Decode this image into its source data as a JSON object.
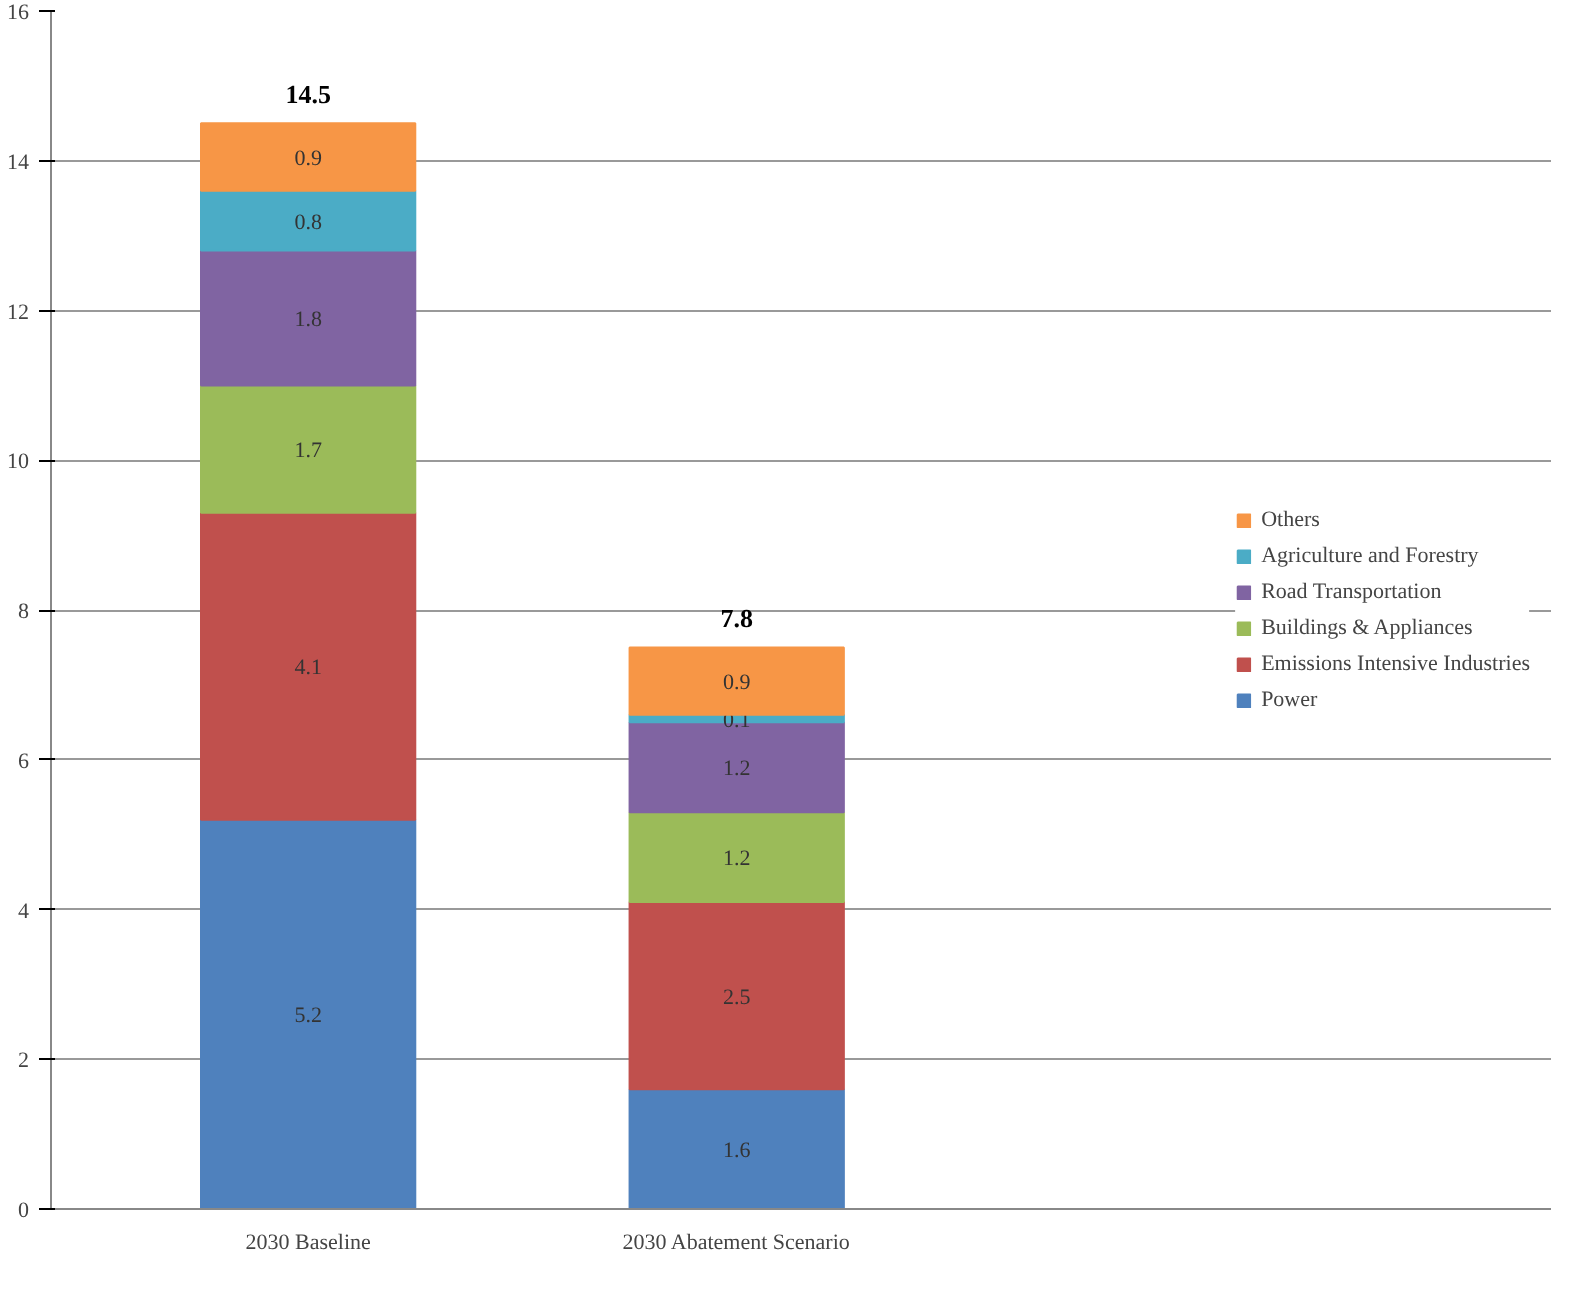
{
  "chart_data": {
    "type": "bar",
    "stacked": true,
    "categories": [
      "2030 Baseline",
      "2030 Abatement Scenario"
    ],
    "series": [
      {
        "name": "Power",
        "color": "#4f81bd",
        "values": [
          5.2,
          1.6
        ]
      },
      {
        "name": "Emissions Intensive Industries",
        "color": "#c0504d",
        "values": [
          4.1,
          2.5
        ]
      },
      {
        "name": "Buildings & Appliances",
        "color": "#9bbb59",
        "values": [
          1.7,
          1.2
        ]
      },
      {
        "name": "Road Transportation",
        "color": "#8064a2",
        "values": [
          1.8,
          1.2
        ]
      },
      {
        "name": "Agriculture and Forestry",
        "color": "#4bacc6",
        "values": [
          0.8,
          0.1
        ]
      },
      {
        "name": "Others",
        "color": "#f79646",
        "values": [
          0.9,
          0.9
        ]
      }
    ],
    "totals": [
      "14.5",
      "7.8"
    ],
    "ylim": [
      0,
      16
    ],
    "yticks": [
      0,
      2,
      4,
      6,
      8,
      10,
      12,
      14,
      16
    ],
    "grid": "y",
    "legend": "right",
    "data_labels": true
  }
}
